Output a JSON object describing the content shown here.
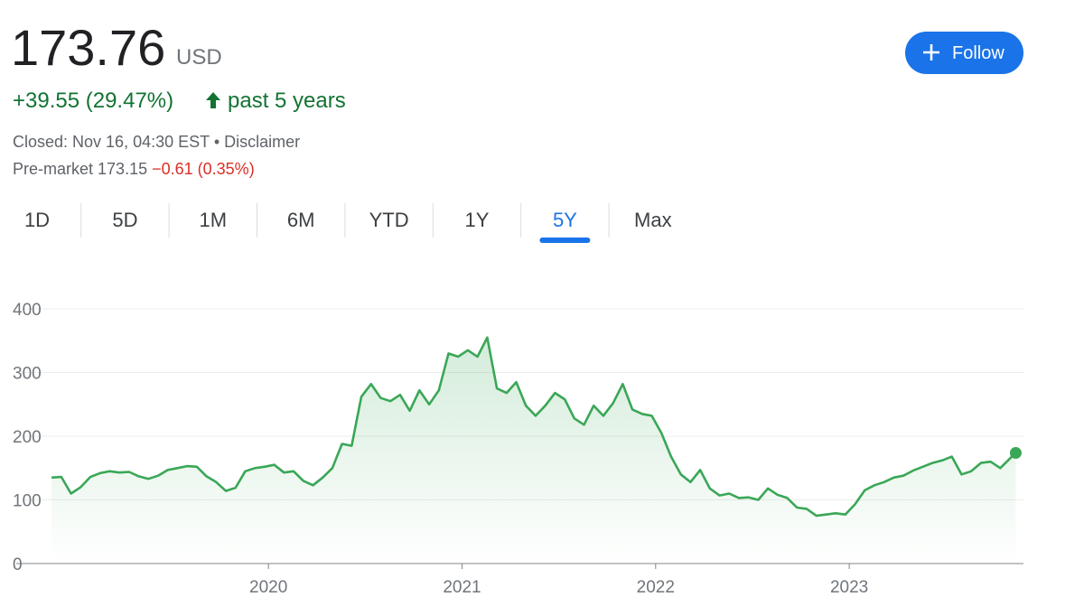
{
  "header": {
    "price": "173.76",
    "currency": "USD",
    "change": "+39.55 (29.47%)",
    "period": "past 5 years",
    "market_status": "Closed: Nov 16, 04:30 EST",
    "separator": "•",
    "disclaimer": "Disclaimer",
    "premarket_label": "Pre-market",
    "premarket_price": "173.15",
    "premarket_change": "−0.61 (0.35%)"
  },
  "follow_button": "Follow",
  "tabs": [
    "1D",
    "5D",
    "1M",
    "6M",
    "YTD",
    "1Y",
    "5Y",
    "Max"
  ],
  "selected_tab": 6,
  "chart_data": {
    "type": "line",
    "color": "#3aa757",
    "x": [
      2018.88,
      2018.93,
      2018.98,
      2019.03,
      2019.08,
      2019.13,
      2019.18,
      2019.23,
      2019.28,
      2019.33,
      2019.38,
      2019.43,
      2019.48,
      2019.53,
      2019.58,
      2019.63,
      2019.68,
      2019.73,
      2019.78,
      2019.83,
      2019.88,
      2019.93,
      2019.98,
      2020.03,
      2020.08,
      2020.13,
      2020.18,
      2020.23,
      2020.28,
      2020.33,
      2020.38,
      2020.43,
      2020.48,
      2020.53,
      2020.58,
      2020.63,
      2020.68,
      2020.73,
      2020.78,
      2020.83,
      2020.88,
      2020.93,
      2020.98,
      2021.03,
      2021.08,
      2021.13,
      2021.18,
      2021.23,
      2021.28,
      2021.33,
      2021.38,
      2021.43,
      2021.48,
      2021.53,
      2021.58,
      2021.63,
      2021.68,
      2021.73,
      2021.78,
      2021.83,
      2021.88,
      2021.93,
      2021.98,
      2022.03,
      2022.08,
      2022.13,
      2022.18,
      2022.23,
      2022.28,
      2022.33,
      2022.38,
      2022.43,
      2022.48,
      2022.53,
      2022.58,
      2022.63,
      2022.68,
      2022.73,
      2022.78,
      2022.83,
      2022.88,
      2022.93,
      2022.98,
      2023.03,
      2023.08,
      2023.13,
      2023.18,
      2023.23,
      2023.28,
      2023.33,
      2023.38,
      2023.43,
      2023.48,
      2023.53,
      2023.58,
      2023.63,
      2023.68,
      2023.73,
      2023.78,
      2023.83,
      2023.86
    ],
    "values": [
      135,
      136,
      110,
      120,
      136,
      142,
      145,
      143,
      144,
      137,
      133,
      138,
      147,
      150,
      153,
      152,
      137,
      128,
      114,
      119,
      145,
      150,
      152,
      155,
      143,
      145,
      130,
      123,
      135,
      150,
      188,
      185,
      262,
      282,
      260,
      255,
      265,
      240,
      272,
      250,
      272,
      330,
      325,
      335,
      325,
      355,
      275,
      268,
      285,
      248,
      232,
      248,
      268,
      258,
      228,
      218,
      248,
      232,
      252,
      282,
      242,
      235,
      232,
      205,
      168,
      140,
      128,
      147,
      118,
      107,
      110,
      103,
      104,
      100,
      118,
      108,
      103,
      88,
      86,
      75,
      77,
      79,
      77,
      93,
      115,
      123,
      128,
      135,
      138,
      146,
      152,
      158,
      162,
      168,
      140,
      145,
      158,
      160,
      150,
      165,
      173.76
    ],
    "xlim": [
      2018.73,
      2023.9
    ],
    "xticks": [
      2020,
      2021,
      2022,
      2023
    ],
    "ylim": [
      0,
      400
    ],
    "yticks": [
      0,
      100,
      200,
      300,
      400
    ],
    "grid": true
  }
}
